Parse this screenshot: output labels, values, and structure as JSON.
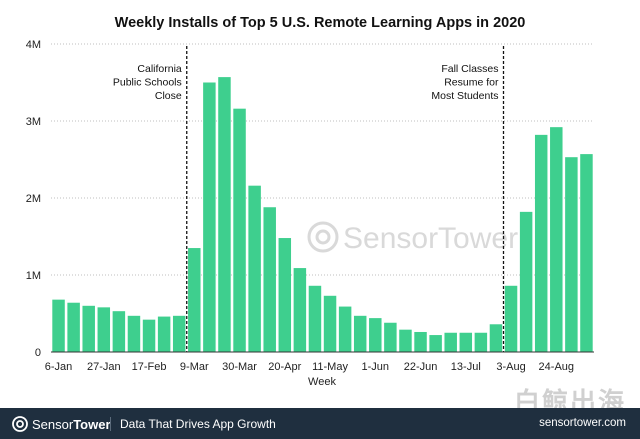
{
  "chart_data": {
    "type": "bar",
    "title": "Weekly Installs of Top 5 U.S. Remote Learning Apps in 2020",
    "xlabel": "Week",
    "ylabel": "",
    "ylim": [
      0,
      4000000
    ],
    "yticks": [
      0,
      1000000,
      2000000,
      3000000,
      4000000
    ],
    "ytick_labels": [
      "0",
      "1M",
      "2M",
      "3M",
      "4M"
    ],
    "xtick_labels": [
      "6-Jan",
      "27-Jan",
      "17-Feb",
      "9-Mar",
      "30-Mar",
      "20-Apr",
      "11-May",
      "1-Jun",
      "22-Jun",
      "13-Jul",
      "3-Aug",
      "24-Aug"
    ],
    "xtick_every": 3,
    "grid": true,
    "bar_color": "#3ecf8e",
    "categories": [
      "6-Jan",
      "13-Jan",
      "20-Jan",
      "27-Jan",
      "3-Feb",
      "10-Feb",
      "17-Feb",
      "24-Feb",
      "2-Mar",
      "9-Mar",
      "16-Mar",
      "23-Mar",
      "30-Mar",
      "6-Apr",
      "13-Apr",
      "20-Apr",
      "27-Apr",
      "4-May",
      "11-May",
      "18-May",
      "25-May",
      "1-Jun",
      "8-Jun",
      "15-Jun",
      "22-Jun",
      "29-Jun",
      "6-Jul",
      "13-Jul",
      "20-Jul",
      "27-Jul",
      "3-Aug",
      "10-Aug",
      "17-Aug",
      "24-Aug",
      "31-Aug",
      "7-Sep"
    ],
    "values": [
      680000,
      640000,
      600000,
      580000,
      530000,
      470000,
      420000,
      460000,
      470000,
      1350000,
      3500000,
      3570000,
      3160000,
      2160000,
      1880000,
      1480000,
      1090000,
      860000,
      730000,
      590000,
      470000,
      440000,
      380000,
      290000,
      260000,
      220000,
      250000,
      250000,
      250000,
      360000,
      860000,
      1820000,
      2820000,
      2920000,
      2530000,
      2570000
    ],
    "annotations": [
      {
        "lines": [
          "California",
          "Public Schools",
          "Close"
        ],
        "between_index": 9,
        "align": "right"
      },
      {
        "lines": [
          "Fall Classes",
          "Resume for",
          "Most Students"
        ],
        "between_index": 30,
        "align": "right"
      }
    ]
  },
  "watermark": "SensorTower",
  "footer": {
    "brand_sensor": "Sensor",
    "brand_tower": "Tower",
    "tagline": "Data That Drives App Growth",
    "url": "sensortower.com"
  },
  "corner_watermark": "白鲸出海",
  "colors": {
    "footer_bg": "#1f2f3f",
    "accent": "#3ecf8e"
  }
}
